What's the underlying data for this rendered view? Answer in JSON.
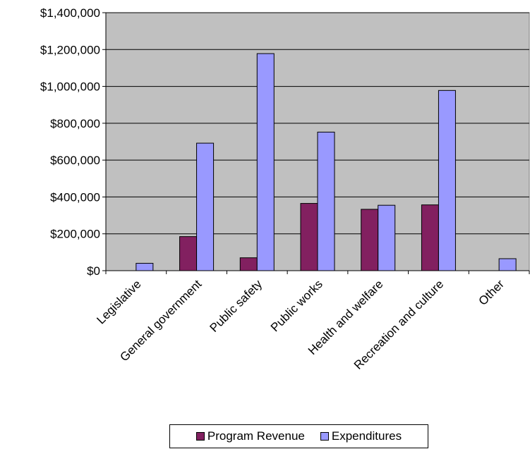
{
  "chart_data": {
    "type": "bar",
    "categories": [
      "Legislative",
      "General government",
      "Public safety",
      "Public works",
      "Health and welfare",
      "Recreation and culture",
      "Other"
    ],
    "series": [
      {
        "name": "Program Revenue",
        "values": [
          0,
          185000,
          70000,
          365000,
          333000,
          357000,
          0
        ]
      },
      {
        "name": "Expenditures",
        "values": [
          40000,
          692000,
          1178000,
          752000,
          355000,
          978000,
          65000
        ]
      }
    ],
    "ylim": [
      0,
      1400000
    ],
    "yticks": [
      0,
      200000,
      400000,
      600000,
      800000,
      1000000,
      1200000,
      1400000
    ],
    "ytick_labels": [
      "$0",
      "$200,000",
      "$400,000",
      "$600,000",
      "$800,000",
      "$1,000,000",
      "$1,200,000",
      "$1,400,000"
    ],
    "grid": true,
    "legend_position": "bottom",
    "colors": {
      "plot_background": "#C0C0C0",
      "Program Revenue": "#822060",
      "Expenditures": "#9999FF"
    }
  }
}
